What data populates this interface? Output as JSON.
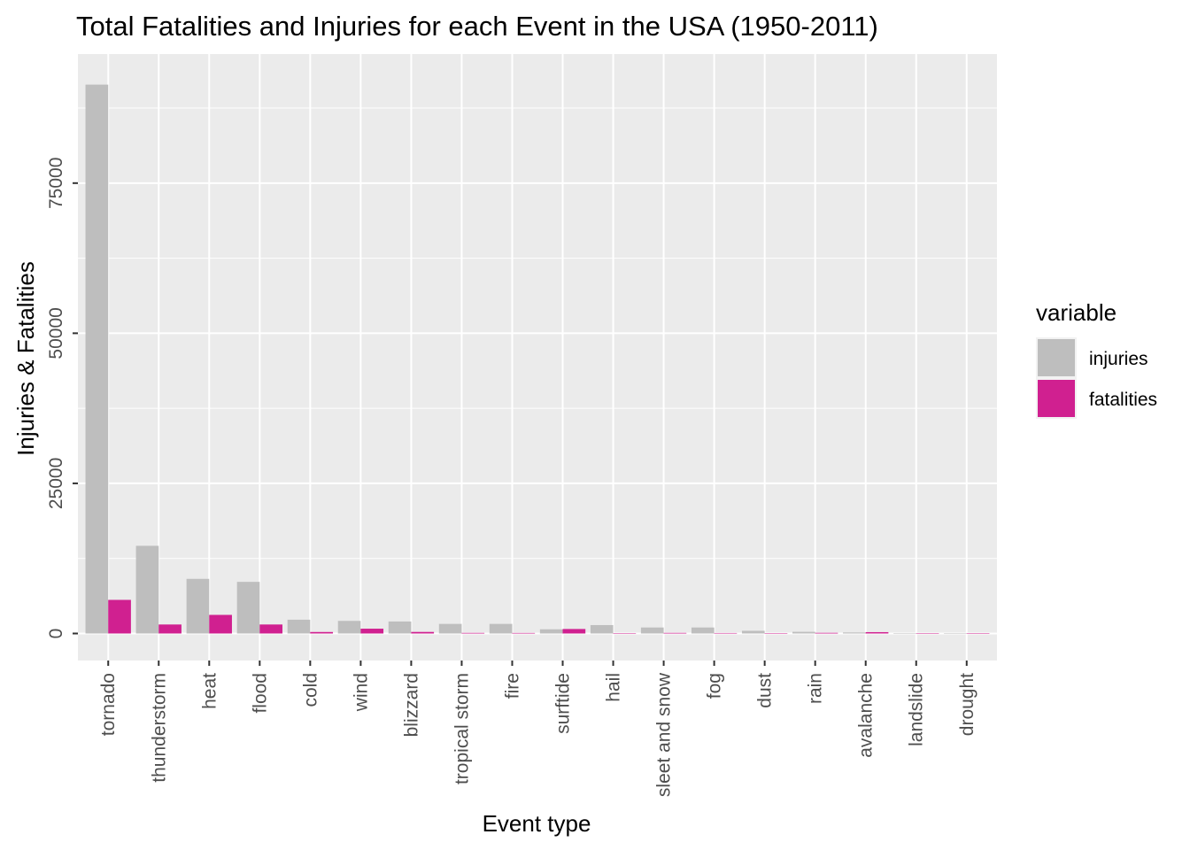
{
  "chart_data": {
    "type": "bar",
    "title": "Total Fatalities and Injuries for each Event in the USA (1950-2011)",
    "xlabel": "Event type",
    "ylabel": "Injuries & Fatalities",
    "ylim": [
      -4500,
      96500
    ],
    "y_ticks": [
      0,
      25000,
      50000,
      75000
    ],
    "y_tick_labels": [
      "0",
      "25000",
      "50000",
      "75000"
    ],
    "grid": true,
    "legend": {
      "title": "variable",
      "position": "right"
    },
    "categories": [
      "tornado",
      "thunderstorm",
      "heat",
      "flood",
      "cold",
      "wind",
      "blizzard",
      "tropical storm",
      "fire",
      "surftide",
      "hail",
      "sleet and snow",
      "fog",
      "dust",
      "rain",
      "avalanche",
      "landslide",
      "drought"
    ],
    "series": [
      {
        "name": "injuries",
        "color": "#bebebe",
        "values": [
          91400,
          14600,
          9100,
          8600,
          2300,
          2100,
          2000,
          1600,
          1600,
          700,
          1400,
          1000,
          1000,
          450,
          280,
          170,
          55,
          20
        ]
      },
      {
        "name": "fatalities",
        "color": "#d02090",
        "values": [
          5600,
          1500,
          3100,
          1500,
          250,
          800,
          260,
          100,
          90,
          750,
          45,
          100,
          80,
          25,
          110,
          225,
          40,
          5
        ]
      }
    ]
  }
}
